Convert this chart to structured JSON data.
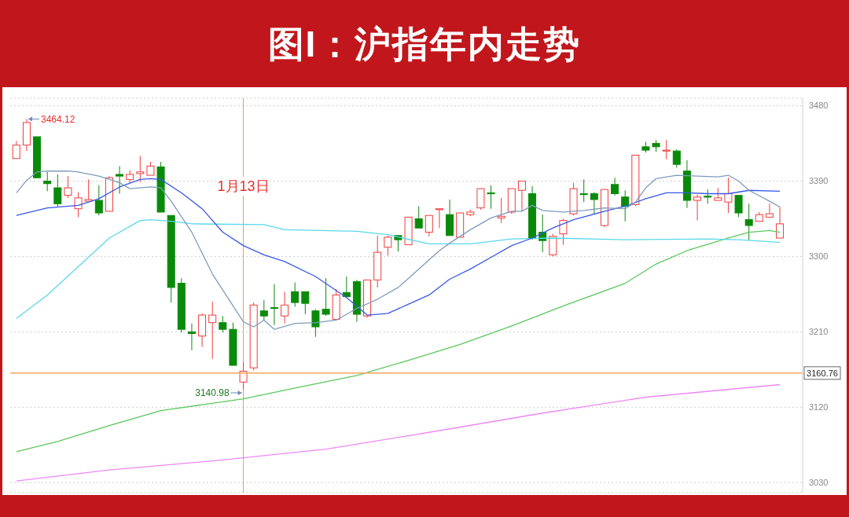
{
  "chart_data": {
    "type": "candlestick",
    "title": "图I：沪指年内走势",
    "categories": [
      null,
      null,
      null,
      null,
      null,
      null,
      null,
      null,
      null,
      null,
      null,
      null,
      null,
      null,
      null,
      null,
      null,
      null,
      null,
      null,
      null,
      null,
      null,
      null,
      null,
      null,
      null,
      null,
      null,
      null,
      null,
      null,
      null,
      null,
      null,
      null,
      null,
      null,
      null,
      null,
      null,
      null,
      null,
      null,
      null,
      null,
      null,
      null,
      null,
      null,
      null,
      null,
      null,
      null,
      null,
      null,
      null,
      null,
      null,
      null,
      null,
      null,
      null,
      null,
      null,
      null,
      null,
      null,
      null,
      null,
      null,
      null,
      null,
      null,
      null
    ],
    "ohlc": [
      [
        3417,
        3438,
        3416,
        3433
      ],
      [
        3433,
        3464.12,
        3426,
        3460
      ],
      [
        3443,
        3444,
        3393,
        3394
      ],
      [
        3390,
        3401,
        3378,
        3387
      ],
      [
        3382,
        3398,
        3359,
        3363
      ],
      [
        3373,
        3396,
        3370,
        3382
      ],
      [
        3357,
        3377,
        3347,
        3370
      ],
      [
        3366,
        3392,
        3365,
        3368
      ],
      [
        3367,
        3385,
        3349,
        3352
      ],
      [
        3354,
        3396,
        3353,
        3394
      ],
      [
        3398,
        3408,
        3375,
        3396
      ],
      [
        3392,
        3403,
        3388,
        3398
      ],
      [
        3399,
        3420,
        3389,
        3401
      ],
      [
        3397,
        3413,
        3396,
        3408
      ],
      [
        3407,
        3413,
        3352,
        3353
      ],
      [
        3349,
        3349,
        3245,
        3263
      ],
      [
        3268,
        3274,
        3209,
        3213
      ],
      [
        3210,
        3220,
        3188,
        3208
      ],
      [
        3205,
        3232,
        3192,
        3230
      ],
      [
        3221,
        3246,
        3178,
        3230
      ],
      [
        3221,
        3229,
        3209,
        3213
      ],
      [
        3213,
        3221,
        3169,
        3170
      ],
      [
        3150,
        3174,
        3140.98,
        3163
      ],
      [
        3167,
        3245,
        3164,
        3242
      ],
      [
        3235,
        3248,
        3224,
        3229
      ],
      [
        3239,
        3267,
        3218,
        3238
      ],
      [
        3229,
        3258,
        3220,
        3242
      ],
      [
        3258,
        3269,
        3240,
        3245
      ],
      [
        3258,
        3258,
        3231,
        3244
      ],
      [
        3235,
        3237,
        3204,
        3216
      ],
      [
        3237,
        3274,
        3229,
        3231
      ],
      [
        3225,
        3261,
        3224,
        3254
      ],
      [
        3257,
        3276,
        3251,
        3252
      ],
      [
        3270,
        3272,
        3222,
        3231
      ],
      [
        3229,
        3273,
        3227,
        3272
      ],
      [
        3272,
        3325,
        3263,
        3305
      ],
      [
        3311,
        3325,
        3301,
        3323
      ],
      [
        3325,
        3326,
        3306,
        3320
      ],
      [
        3314,
        3348,
        3313,
        3347
      ],
      [
        3345,
        3360,
        3333,
        3334
      ],
      [
        3329,
        3350,
        3324,
        3349
      ],
      [
        3356,
        3358,
        3334,
        3357
      ],
      [
        3350,
        3368,
        3324,
        3325
      ],
      [
        3323,
        3353,
        3322,
        3352
      ],
      [
        3350,
        3356,
        3348,
        3353
      ],
      [
        3358,
        3382,
        3356,
        3381
      ],
      [
        3376,
        3385,
        3357,
        3375
      ],
      [
        3346,
        3370,
        3340,
        3348
      ],
      [
        3353,
        3382,
        3351,
        3381
      ],
      [
        3379,
        3391,
        3354,
        3390
      ],
      [
        3375,
        3384,
        3320,
        3322
      ],
      [
        3329,
        3350,
        3305,
        3319
      ],
      [
        3302,
        3327,
        3300,
        3324
      ],
      [
        3327,
        3345,
        3314,
        3343
      ],
      [
        3351,
        3388,
        3349,
        3381
      ],
      [
        3375,
        3392,
        3365,
        3374
      ],
      [
        3375,
        3377,
        3350,
        3368
      ],
      [
        3337,
        3381,
        3335,
        3380
      ],
      [
        3386,
        3394,
        3373,
        3375
      ],
      [
        3371,
        3379,
        3342,
        3360
      ],
      [
        3362,
        3422,
        3360,
        3421
      ],
      [
        3431,
        3437,
        3424,
        3427
      ],
      [
        3435,
        3439,
        3425,
        3431
      ],
      [
        3426,
        3439,
        3416,
        3427
      ],
      [
        3426,
        3428,
        3406,
        3410
      ],
      [
        3402,
        3415,
        3358,
        3367
      ],
      [
        3367,
        3374,
        3343,
        3371
      ],
      [
        3372,
        3380,
        3363,
        3371
      ],
      [
        3367,
        3382,
        3366,
        3370
      ],
      [
        3365,
        3394,
        3352,
        3375
      ],
      [
        3373,
        3374,
        3347,
        3352
      ],
      [
        3344,
        3363,
        3319,
        3337
      ],
      [
        3342,
        3353,
        3341,
        3350
      ],
      [
        3347,
        3363,
        3346,
        3351
      ],
      [
        3322,
        3359,
        3321,
        3339
      ]
    ],
    "colors": [
      "#f03c3c",
      "#f03c3c",
      "#0a8a0a",
      "#0a8a0a",
      "#0a8a0a",
      "#f03c3c",
      "#f03c3c",
      "#f03c3c",
      "#0a8a0a",
      "#f03c3c",
      "#0a8a0a",
      "#f03c3c",
      "#f03c3c",
      "#f03c3c",
      "#0a8a0a",
      "#0a8a0a",
      "#0a8a0a",
      "#0a8a0a",
      "#f03c3c",
      "#f03c3c",
      "#0a8a0a",
      "#0a8a0a",
      "#f03c3c",
      "#f03c3c",
      "#0a8a0a",
      "#0a8a0a",
      "#f03c3c",
      "#0a8a0a",
      "#0a8a0a",
      "#0a8a0a",
      "#0a8a0a",
      "#f03c3c",
      "#0a8a0a",
      "#0a8a0a",
      "#f03c3c",
      "#f03c3c",
      "#f03c3c",
      "#0a8a0a",
      "#f03c3c",
      "#0a8a0a",
      "#f03c3c",
      "#f03c3c",
      "#0a8a0a",
      "#f03c3c",
      "#f03c3c",
      "#f03c3c",
      "#0a8a0a",
      "#f03c3c",
      "#f03c3c",
      "#f03c3c",
      "#0a8a0a",
      "#0a8a0a",
      "#f03c3c",
      "#f03c3c",
      "#f03c3c",
      "#0a8a0a",
      "#0a8a0a",
      "#f03c3c",
      "#0a8a0a",
      "#0a8a0a",
      "#f03c3c",
      "#0a8a0a",
      "#0a8a0a",
      "#f03c3c",
      "#0a8a0a",
      "#0a8a0a",
      "#f03c3c",
      "#0a8a0a",
      "#f03c3c",
      "#f03c3c",
      "#0a8a0a",
      "#0a8a0a",
      "#f03c3c",
      "#f03c3c",
      "#f03c3c"
    ],
    "series": [
      {
        "type": "line",
        "color": "#ee88f5",
        "values": [
          3032,
          null,
          null,
          null,
          null,
          null,
          null,
          null,
          null,
          3045,
          null,
          null,
          null,
          null,
          null,
          null,
          null,
          null,
          null,
          null,
          3057,
          null,
          null,
          null,
          null,
          null,
          null,
          null,
          null,
          null,
          3070,
          null,
          null,
          null,
          null,
          null,
          null,
          null,
          null,
          null,
          3090,
          null,
          null,
          null,
          null,
          null,
          null,
          null,
          null,
          null,
          null,
          3113,
          null,
          null,
          null,
          null,
          null,
          null,
          null,
          null,
          null,
          3132,
          null,
          null,
          null,
          null,
          null,
          null,
          null,
          null,
          null,
          null,
          null,
          null,
          3147
        ]
      },
      {
        "type": "line",
        "color": "#5cc85c",
        "values": [
          3067,
          null,
          null,
          null,
          3079,
          null,
          null,
          null,
          null,
          3098,
          null,
          null,
          null,
          null,
          3116,
          null,
          null,
          null,
          null,
          null,
          null,
          null,
          3130,
          null,
          null,
          null,
          null,
          3143,
          null,
          null,
          null,
          null,
          null,
          3158,
          null,
          null,
          null,
          null,
          3176,
          null,
          null,
          null,
          null,
          3195,
          null,
          null,
          null,
          null,
          3217,
          null,
          null,
          null,
          null,
          3241,
          null,
          null,
          null,
          null,
          null,
          3268,
          null,
          null,
          3291,
          null,
          null,
          3307,
          null,
          null,
          null,
          3322,
          null,
          3329,
          null,
          3331,
          3329
        ]
      },
      {
        "type": "line",
        "color": "#5ad8ea",
        "values": [
          3226,
          null,
          null,
          3254,
          null,
          null,
          3288,
          null,
          null,
          3322,
          null,
          null,
          3343,
          3344,
          null,
          3342,
          null,
          3339,
          null,
          null,
          null,
          null,
          null,
          null,
          3338,
          null,
          3332,
          null,
          null,
          null,
          null,
          null,
          null,
          3330,
          null,
          null,
          3326,
          null,
          null,
          null,
          3315,
          null,
          null,
          null,
          3315,
          null,
          null,
          null,
          3321,
          null,
          null,
          null,
          3322,
          null,
          null,
          null,
          null,
          null,
          null,
          3320,
          null,
          null,
          null,
          null,
          null,
          null,
          null,
          3321,
          null,
          null,
          3320,
          null,
          null,
          null,
          3317
        ]
      },
      {
        "type": "line",
        "color": "#3858e8",
        "values": [
          3349,
          null,
          null,
          3358,
          null,
          null,
          3361,
          null,
          3369,
          null,
          3383,
          null,
          3392,
          3393,
          3392,
          null,
          3376,
          null,
          3357,
          null,
          3329,
          null,
          3313,
          null,
          3302,
          null,
          3294,
          null,
          null,
          3276,
          null,
          null,
          3251,
          null,
          3230,
          null,
          3232,
          null,
          3243,
          null,
          3254,
          null,
          3273,
          null,
          3285,
          null,
          3299,
          null,
          3313,
          null,
          3322,
          null,
          3334,
          null,
          3344,
          null,
          null,
          3354,
          null,
          3360,
          null,
          3369,
          null,
          3376,
          null,
          3376,
          null,
          3375,
          null,
          3375,
          null,
          3379,
          null,
          null,
          3378
        ]
      },
      {
        "type": "line",
        "color": "#7e9cbc",
        "values": [
          3376,
          3391,
          3401,
          3402,
          null,
          3402,
          3401,
          null,
          3396,
          null,
          3388,
          3381,
          null,
          3383,
          3382,
          3366,
          null,
          3329,
          null,
          3279,
          null,
          3241,
          3222,
          3216,
          3224,
          3213,
          null,
          3220,
          null,
          3221,
          null,
          3224,
          null,
          3238,
          null,
          3249,
          null,
          3263,
          null,
          3285,
          null,
          3307,
          3316,
          null,
          3332,
          null,
          3346,
          null,
          3354,
          3354,
          3361,
          3355,
          null,
          3353,
          null,
          3355,
          null,
          3358,
          null,
          3357,
          3365,
          3382,
          3393,
          null,
          3397,
          null,
          3396,
          null,
          3395,
          3397,
          3390,
          3379,
          null,
          3366,
          3359
        ]
      }
    ],
    "ylim": [
      3018,
      3489
    ],
    "yticks": [
      3030,
      3120,
      3210,
      3300,
      3390,
      3480
    ],
    "grid": "y",
    "tick_labels": "y",
    "ref_lines": [
      {
        "axis": "y",
        "value": 3160.76,
        "label": "3160.76",
        "color": "#f7a35c"
      }
    ],
    "annotations": [
      "1月13日",
      "3464.12",
      "3140.98"
    ]
  }
}
